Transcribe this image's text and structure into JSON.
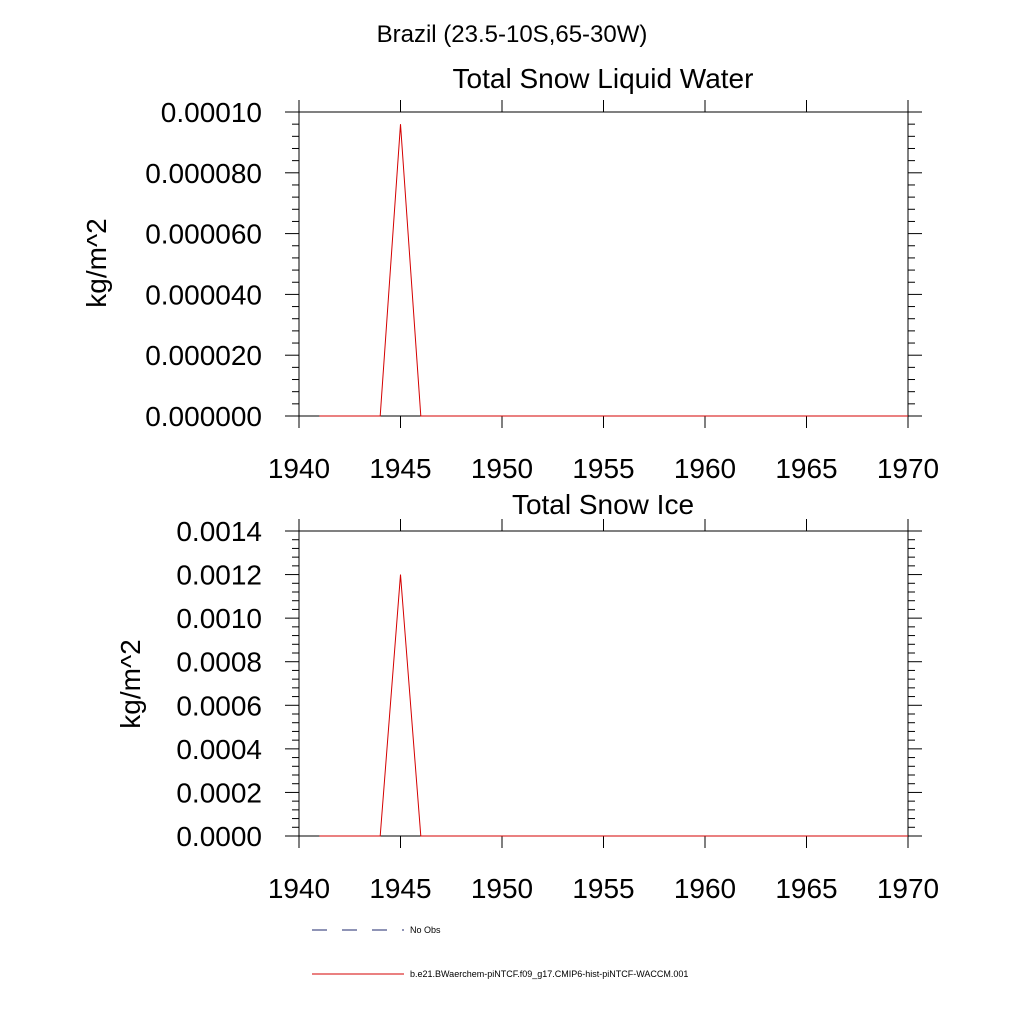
{
  "suptitle": "Brazil (23.5-10S,65-30W)",
  "chart_data": [
    {
      "type": "line",
      "title": "Total Snow Liquid Water",
      "xlabel": "",
      "ylabel": "kg/m^2",
      "xlim": [
        1940,
        1970
      ],
      "ylim": [
        0,
        0.0001
      ],
      "xticks": [
        1940,
        1945,
        1950,
        1955,
        1960,
        1965,
        1970
      ],
      "xtick_labels": [
        "1940",
        "1945",
        "1950",
        "1955",
        "1960",
        "1965",
        "1970"
      ],
      "yticks": [
        0,
        2e-05,
        4e-05,
        6e-05,
        8e-05,
        0.0001
      ],
      "ytick_labels": [
        "0.000000",
        "0.000020",
        "0.000040",
        "0.000060",
        "0.000080",
        "0.00010"
      ],
      "series": [
        {
          "name": "b.e21.BWaerchem-piNTCF.f09_g17.CMIP6-hist-piNTCF-WACCM.001",
          "color": "#d40000",
          "x": [
            1941,
            1942,
            1943,
            1944,
            1945,
            1946,
            1947,
            1948,
            1949,
            1950,
            1951,
            1952,
            1953,
            1954,
            1955,
            1956,
            1957,
            1958,
            1959,
            1960,
            1961,
            1962,
            1963,
            1964,
            1965,
            1966,
            1967,
            1968,
            1969,
            1970
          ],
          "y": [
            0,
            0,
            0,
            0,
            9.6e-05,
            0,
            0,
            0,
            0,
            0,
            0,
            0,
            0,
            0,
            0,
            0,
            0,
            0,
            0,
            0,
            0,
            0,
            0,
            0,
            0,
            0,
            0,
            0,
            0,
            0
          ]
        }
      ]
    },
    {
      "type": "line",
      "title": "Total Snow Ice",
      "xlabel": "",
      "ylabel": "kg/m^2",
      "xlim": [
        1940,
        1970
      ],
      "ylim": [
        0,
        0.0014
      ],
      "xticks": [
        1940,
        1945,
        1950,
        1955,
        1960,
        1965,
        1970
      ],
      "xtick_labels": [
        "1940",
        "1945",
        "1950",
        "1955",
        "1960",
        "1965",
        "1970"
      ],
      "yticks": [
        0,
        0.0002,
        0.0004,
        0.0006,
        0.0008,
        0.001,
        0.0012,
        0.0014
      ],
      "ytick_labels": [
        "0.0000",
        "0.0002",
        "0.0004",
        "0.0006",
        "0.0008",
        "0.0010",
        "0.0012",
        "0.0014"
      ],
      "series": [
        {
          "name": "b.e21.BWaerchem-piNTCF.f09_g17.CMIP6-hist-piNTCF-WACCM.001",
          "color": "#d40000",
          "x": [
            1941,
            1942,
            1943,
            1944,
            1945,
            1946,
            1947,
            1948,
            1949,
            1950,
            1951,
            1952,
            1953,
            1954,
            1955,
            1956,
            1957,
            1958,
            1959,
            1960,
            1961,
            1962,
            1963,
            1964,
            1965,
            1966,
            1967,
            1968,
            1969,
            1970
          ],
          "y": [
            0,
            0,
            0,
            0,
            0.0012,
            0,
            0,
            0,
            0,
            0,
            0,
            0,
            0,
            0,
            0,
            0,
            0,
            0,
            0,
            0,
            0,
            0,
            0,
            0,
            0,
            0,
            0,
            0,
            0,
            0
          ]
        }
      ]
    }
  ],
  "legend": {
    "placement": "bottom",
    "entries": [
      {
        "label": "No Obs",
        "color": "#1f2a6e",
        "style": "dashed"
      },
      {
        "label": "b.e21.BWaerchem-piNTCF.f09_g17.CMIP6-hist-piNTCF-WACCM.001",
        "color": "#d40000",
        "style": "solid"
      }
    ]
  }
}
